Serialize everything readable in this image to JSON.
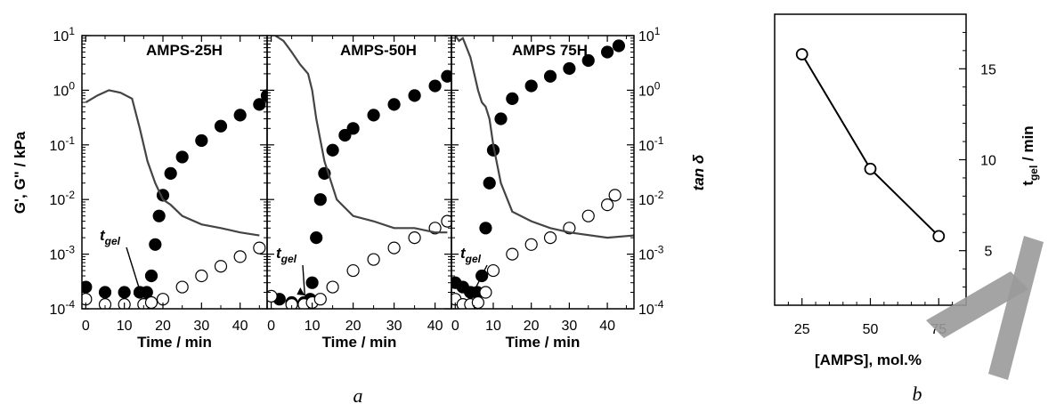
{
  "chart_data": [
    {
      "type": "scatter",
      "panel_label": "a",
      "left_ylabel": "G', G\" / kPa",
      "right_ylabel": "tan δ",
      "yscale": "log",
      "ylim": [
        0.0001,
        10
      ],
      "y_ticks": [
        "10-4",
        "10-3",
        "10-2",
        "10-1",
        "100",
        "101"
      ],
      "annotation": "tgel",
      "subplots": [
        {
          "title": "AMPS-25H",
          "xlabel": "Time / min",
          "xlim": [
            -1,
            47
          ],
          "x_ticks": [
            0,
            10,
            20,
            30,
            40
          ],
          "gel_time": 15.8,
          "series": [
            {
              "name": "G'",
              "marker": "filled-circle",
              "x": [
                0,
                5,
                10,
                14,
                15.8,
                17,
                18,
                19,
                20,
                22,
                25,
                30,
                35,
                40,
                45,
                47
              ],
              "y": [
                0.00025,
                0.0002,
                0.0002,
                0.0002,
                0.0002,
                0.0004,
                0.0015,
                0.005,
                0.012,
                0.03,
                0.06,
                0.12,
                0.22,
                0.35,
                0.55,
                0.8
              ]
            },
            {
              "name": "G\"",
              "marker": "open-circle",
              "x": [
                0,
                5,
                10,
                15,
                17,
                20,
                25,
                30,
                35,
                40,
                45
              ],
              "y": [
                0.00015,
                0.00012,
                0.00012,
                0.00012,
                0.00013,
                0.00015,
                0.00025,
                0.0004,
                0.0006,
                0.0009,
                0.0013
              ]
            },
            {
              "name": "tan δ",
              "marker": "line",
              "x": [
                0,
                3,
                6,
                9,
                12,
                14,
                16,
                18,
                20,
                22,
                25,
                30,
                35,
                40,
                45
              ],
              "y": [
                0.6,
                0.8,
                1.0,
                0.9,
                0.7,
                0.2,
                0.05,
                0.02,
                0.01,
                0.008,
                0.005,
                0.0035,
                0.003,
                0.0025,
                0.0022
              ]
            }
          ]
        },
        {
          "title": "AMPS-50H",
          "xlabel": "Time / min",
          "xlim": [
            -1,
            44
          ],
          "x_ticks": [
            0,
            10,
            20,
            30,
            40
          ],
          "gel_time": 9.5,
          "series": [
            {
              "name": "G'",
              "marker": "filled-circle",
              "x": [
                2,
                5,
                8,
                9.5,
                10,
                11,
                12,
                13,
                15,
                18,
                20,
                25,
                30,
                35,
                40,
                43
              ],
              "y": [
                0.00015,
                0.00013,
                0.00013,
                0.00015,
                0.0003,
                0.002,
                0.01,
                0.03,
                0.08,
                0.15,
                0.2,
                0.35,
                0.55,
                0.8,
                1.2,
                1.8
              ]
            },
            {
              "name": "G\"",
              "marker": "open-circle",
              "x": [
                0,
                5,
                8,
                10,
                12,
                15,
                20,
                25,
                30,
                35,
                40,
                43
              ],
              "y": [
                0.00017,
                0.00012,
                0.00012,
                0.00013,
                0.00015,
                0.00025,
                0.0005,
                0.0008,
                0.0013,
                0.002,
                0.003,
                0.004
              ]
            },
            {
              "name": "tan δ",
              "marker": "line",
              "x": [
                1,
                3,
                5,
                7,
                9,
                10,
                11,
                13,
                16,
                20,
                25,
                30,
                35,
                40,
                43
              ],
              "y": [
                10,
                8,
                5,
                3,
                2,
                1.0,
                0.3,
                0.05,
                0.01,
                0.005,
                0.004,
                0.003,
                0.003,
                0.0025,
                0.0025
              ]
            }
          ]
        },
        {
          "title": "AMPS 75H",
          "xlabel": "Time / min",
          "xlim": [
            -1,
            47
          ],
          "x_ticks": [
            0,
            10,
            20,
            30,
            40
          ],
          "gel_time": 5.8,
          "series": [
            {
              "name": "G'",
              "marker": "filled-circle",
              "x": [
                0,
                2,
                4,
                5.8,
                7,
                8,
                9,
                10,
                12,
                15,
                20,
                25,
                30,
                35,
                40,
                43
              ],
              "y": [
                0.0003,
                0.00025,
                0.0002,
                0.0002,
                0.0004,
                0.003,
                0.02,
                0.08,
                0.3,
                0.7,
                1.2,
                1.8,
                2.5,
                3.5,
                5,
                6.5
              ]
            },
            {
              "name": "G\"",
              "marker": "open-circle",
              "x": [
                0,
                2,
                4,
                6,
                8,
                10,
                15,
                20,
                25,
                30,
                35,
                40,
                42
              ],
              "y": [
                0.00015,
                0.00012,
                0.00012,
                0.00013,
                0.0002,
                0.0005,
                0.001,
                0.0015,
                0.002,
                0.003,
                0.005,
                0.008,
                0.012
              ]
            },
            {
              "name": "tan δ",
              "marker": "line",
              "x": [
                0,
                1,
                2,
                3,
                4,
                5,
                6,
                7,
                8,
                9,
                10,
                12,
                15,
                20,
                25,
                30,
                40,
                47
              ],
              "y": [
                10,
                8,
                9,
                6,
                4,
                2,
                1,
                0.6,
                0.5,
                0.3,
                0.1,
                0.02,
                0.006,
                0.004,
                0.003,
                0.0025,
                0.002,
                0.0022
              ]
            }
          ]
        }
      ]
    },
    {
      "type": "line",
      "panel_label": "b",
      "xlabel": "[AMPS], mol.%",
      "ylabel": "tgel / min",
      "xlim": [
        15,
        85
      ],
      "ylim": [
        2,
        18
      ],
      "x_ticks": [
        25,
        50,
        75
      ],
      "y_ticks": [
        5,
        10,
        15
      ],
      "series": [
        {
          "marker": "open-circle",
          "x": [
            25,
            50,
            75
          ],
          "y": [
            15.8,
            9.5,
            5.8
          ]
        }
      ]
    }
  ]
}
